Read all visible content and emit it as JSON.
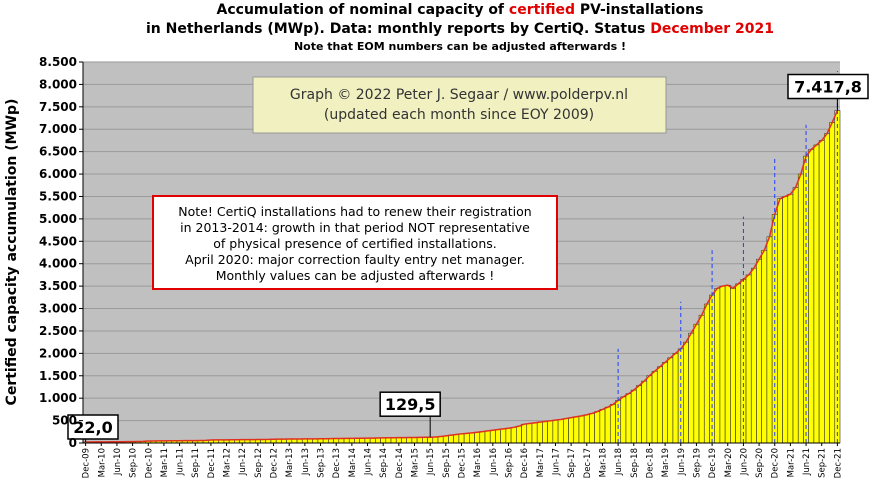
{
  "chart_data": {
    "type": "bar",
    "title": {
      "line1": [
        "Accumulation  of nominal  capacity of ",
        "certified",
        " PV-installations"
      ],
      "line2": [
        "in Netherlands (MWp). Data: monthly  reports by CertiQ. Status ",
        "December 2021"
      ]
    },
    "subtitle": "Note that EOM numbers can be adjusted afterwards  !",
    "y_label": "Certified capacity accumulation (MWp)",
    "credit": [
      "Graph © 2022 Peter J. Segaar / www.polderpv.nl",
      "(updated each month since EOY 2009)"
    ],
    "note": [
      "Note! CertiQ installations had to renew their registration",
      "in 2013-2014:  growth in that period  NOT representative",
      "of physical presence of certified installations.",
      "April 2020:  major  correction faulty entry net manager.",
      "Monthly values can be adjusted afterwards !"
    ],
    "color": "#ffff00",
    "line_color": "#e03020",
    "grid": true,
    "ylim": [
      0,
      8500
    ],
    "yticks": [
      0,
      500,
      {
        "value": 1000,
        "label": "1.000"
      },
      {
        "value": 1500,
        "label": "1.500"
      },
      {
        "value": 2000,
        "label": "2.000"
      },
      {
        "value": 2500,
        "label": "2.500"
      },
      {
        "value": 3000,
        "label": "3.000"
      },
      {
        "value": 3500,
        "label": "3.500"
      },
      {
        "value": 4000,
        "label": "4.000"
      },
      {
        "value": 4500,
        "label": "4.500"
      },
      {
        "value": 5000,
        "label": "5.000"
      },
      {
        "value": 5500,
        "label": "5.500"
      },
      {
        "value": 6000,
        "label": "6.000"
      },
      {
        "value": 6500,
        "label": "6.500"
      },
      {
        "value": 7000,
        "label": "7.000"
      },
      {
        "value": 7500,
        "label": "7.500"
      },
      {
        "value": 8000,
        "label": "8.000"
      },
      {
        "value": 8500,
        "label": "8.500"
      }
    ],
    "categories": [
      "Dec-09",
      null,
      null,
      "Mar-10",
      null,
      null,
      "Jun-10",
      null,
      null,
      "Sep-10",
      null,
      null,
      "Dec-10",
      null,
      null,
      "Mar-11",
      null,
      null,
      "Jun-11",
      null,
      null,
      "Sep-11",
      null,
      null,
      "Dec-11",
      null,
      null,
      "Mar-12",
      null,
      null,
      "Jun-12",
      null,
      null,
      "Sep-12",
      null,
      null,
      "Dec-12",
      null,
      null,
      "Mar-13",
      null,
      null,
      "Jun-13",
      null,
      null,
      "Sep-13",
      null,
      null,
      "Dec-13",
      null,
      null,
      "Mar-14",
      null,
      null,
      "Jun-14",
      null,
      null,
      "Sep-14",
      null,
      null,
      "Dec-14",
      null,
      null,
      "Mar-15",
      null,
      null,
      "Jun-15",
      null,
      null,
      "Sep-15",
      null,
      null,
      "Dec-15",
      null,
      null,
      "Mar-16",
      null,
      null,
      "Jun-16",
      null,
      null,
      "Sep-16",
      null,
      null,
      "Dec-16",
      null,
      null,
      "Mar-17",
      null,
      null,
      "Jun-17",
      null,
      null,
      "Sep-17",
      null,
      null,
      "Dec-17",
      null,
      null,
      "Mar-18",
      null,
      null,
      "Jun-18",
      null,
      null,
      "Sep-18",
      null,
      null,
      "Dec-18",
      null,
      null,
      "Mar-19",
      null,
      null,
      "Jun-19",
      null,
      null,
      "Sep-19",
      null,
      null,
      "Dec-19",
      null,
      null,
      "Mar-20",
      null,
      null,
      "Jun-20",
      null,
      null,
      "Sep-20",
      null,
      null,
      "Dec-20",
      null,
      null,
      "Mar-21",
      null,
      null,
      "Jun-21",
      null,
      null,
      "Sep-21",
      null,
      null,
      "Dec-21"
    ],
    "values": [
      22.0,
      23,
      24,
      25,
      26,
      27,
      28,
      29,
      30,
      31,
      33,
      35,
      45,
      46,
      47,
      48,
      49,
      50,
      51,
      52,
      53,
      54,
      56,
      58,
      68,
      69,
      70,
      71,
      72,
      73,
      74,
      75,
      76,
      77,
      78,
      80,
      85,
      86,
      87,
      88,
      89,
      90,
      91,
      92,
      93,
      94,
      95,
      97,
      100,
      101,
      102,
      103,
      105,
      106,
      108,
      110,
      112,
      114,
      116,
      118,
      120,
      121,
      122,
      124,
      126,
      128,
      129.5,
      135,
      145,
      160,
      175,
      190,
      205,
      215,
      225,
      240,
      255,
      270,
      285,
      300,
      315,
      330,
      350,
      375,
      420,
      435,
      450,
      465,
      480,
      495,
      510,
      525,
      545,
      565,
      585,
      605,
      630,
      660,
      700,
      750,
      800,
      860,
      950,
      1030,
      1100,
      1180,
      1280,
      1380,
      1500,
      1600,
      1700,
      1800,
      1900,
      2000,
      2100,
      2250,
      2450,
      2650,
      2850,
      3100,
      3300,
      3450,
      3500,
      3520,
      3450,
      3550,
      3650,
      3750,
      3900,
      4100,
      4300,
      4600,
      5100,
      5450,
      5500,
      5550,
      5700,
      6000,
      6400,
      6550,
      6650,
      6750,
      6900,
      7150,
      7417.8
    ],
    "value_labels": [
      "22,0",
      null,
      null,
      null,
      null,
      null,
      null,
      null,
      null,
      null,
      null,
      null,
      null,
      null,
      null,
      null,
      null,
      null,
      null,
      null,
      null,
      null,
      null,
      null,
      null,
      null,
      null,
      null,
      null,
      null,
      null,
      null,
      null,
      null,
      null,
      null,
      null,
      null,
      null,
      null,
      null,
      null,
      null,
      null,
      null,
      null,
      null,
      null,
      null,
      null,
      null,
      null,
      null,
      null,
      null,
      null,
      null,
      null,
      null,
      null,
      null,
      null,
      null,
      null,
      null,
      null,
      "129,5",
      null,
      null,
      null,
      null,
      null,
      null,
      null,
      null,
      null,
      null,
      null,
      null,
      null,
      null,
      null,
      null,
      null,
      null,
      null,
      null,
      null,
      null,
      null,
      null,
      null,
      null,
      null,
      null,
      null,
      null,
      null,
      null,
      null,
      null,
      null,
      null,
      null,
      null,
      null,
      null,
      null,
      null,
      null,
      null,
      null,
      null,
      null,
      null,
      null,
      null,
      null,
      null,
      null,
      null,
      null,
      null,
      null,
      null,
      null,
      null,
      null,
      null,
      null,
      null,
      null,
      null,
      null,
      null,
      null,
      null,
      null,
      null,
      null,
      null,
      null,
      null,
      null,
      "7.417,8"
    ],
    "reference_lines": [
      {
        "category": "Jun-18",
        "value": 2100
      },
      {
        "category": "Jun-19",
        "value": 3150
      },
      {
        "category": "Dec-19",
        "value": 4300
      },
      {
        "category": "Jun-20",
        "value": 5050
      },
      {
        "category": "Dec-20",
        "value": 6400
      },
      {
        "category": "Jun-21",
        "value": 7100
      },
      {
        "category": "Dec-21",
        "value": 8300
      }
    ]
  }
}
